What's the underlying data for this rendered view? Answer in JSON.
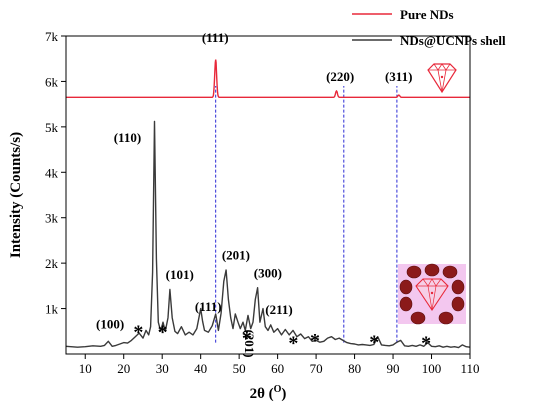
{
  "chart_data": {
    "type": "line",
    "xlabel": "2θ (",
    "xlabel_unit": "O",
    "xlabel_close": ")",
    "ylabel": "Intensity (Counts/s)",
    "xlim": [
      5,
      110
    ],
    "ylim": [
      0,
      7000
    ],
    "x_ticks": [
      10,
      20,
      30,
      40,
      50,
      60,
      70,
      80,
      90,
      100,
      110
    ],
    "y_ticks": [
      {
        "value": 1000,
        "label": "1k"
      },
      {
        "value": 2000,
        "label": "2k"
      },
      {
        "value": 3000,
        "label": "3k"
      },
      {
        "value": 4000,
        "label": "4k"
      },
      {
        "value": 5000,
        "label": "5k"
      },
      {
        "value": 6000,
        "label": "6k"
      },
      {
        "value": 7000,
        "label": "7k"
      }
    ],
    "legend_position": "top-right",
    "series": [
      {
        "name": "Pure NDs",
        "color": "#e8283a",
        "baseline": 5650,
        "peaks": [
          {
            "x": 43.9,
            "y": 6480,
            "width": 0.35
          },
          {
            "x": 75.3,
            "y": 5790,
            "width": 0.35
          },
          {
            "x": 91.5,
            "y": 5700,
            "width": 0.35
          }
        ]
      },
      {
        "name": "NDs@UCNPs shell",
        "color": "#3a3a3a",
        "points": [
          [
            5,
            170
          ],
          [
            8,
            150
          ],
          [
            10,
            160
          ],
          [
            12,
            180
          ],
          [
            14,
            170
          ],
          [
            15,
            190
          ],
          [
            16,
            280
          ],
          [
            17,
            170
          ],
          [
            18,
            190
          ],
          [
            19,
            220
          ],
          [
            20,
            250
          ],
          [
            21,
            240
          ],
          [
            22,
            300
          ],
          [
            23,
            380
          ],
          [
            24,
            460
          ],
          [
            25,
            350
          ],
          [
            25.8,
            520
          ],
          [
            26.5,
            420
          ],
          [
            27,
            600
          ],
          [
            27.5,
            1800
          ],
          [
            28,
            5120
          ],
          [
            28.5,
            2100
          ],
          [
            29,
            700
          ],
          [
            29.6,
            500
          ],
          [
            30.2,
            700
          ],
          [
            30.8,
            500
          ],
          [
            31.5,
            800
          ],
          [
            32,
            1420
          ],
          [
            32.6,
            800
          ],
          [
            33.3,
            500
          ],
          [
            34,
            450
          ],
          [
            35,
            600
          ],
          [
            36,
            420
          ],
          [
            37,
            480
          ],
          [
            38,
            420
          ],
          [
            39,
            560
          ],
          [
            40,
            1000
          ],
          [
            40.5,
            720
          ],
          [
            41,
            520
          ],
          [
            42,
            480
          ],
          [
            43,
            620
          ],
          [
            43.9,
            880
          ],
          [
            44.6,
            520
          ],
          [
            45.3,
            900
          ],
          [
            46,
            1600
          ],
          [
            46.6,
            1850
          ],
          [
            47.2,
            1200
          ],
          [
            47.8,
            800
          ],
          [
            48.4,
            560
          ],
          [
            49,
            880
          ],
          [
            49.7,
            700
          ],
          [
            50.3,
            560
          ],
          [
            51,
            700
          ],
          [
            51.6,
            520
          ],
          [
            52.3,
            850
          ],
          [
            53,
            560
          ],
          [
            53.6,
            700
          ],
          [
            54.2,
            1200
          ],
          [
            54.8,
            1460
          ],
          [
            55.4,
            700
          ],
          [
            56.2,
            1000
          ],
          [
            56.8,
            600
          ],
          [
            57.5,
            520
          ],
          [
            58.2,
            640
          ],
          [
            59,
            480
          ],
          [
            60,
            560
          ],
          [
            61,
            420
          ],
          [
            62,
            540
          ],
          [
            63,
            420
          ],
          [
            64,
            520
          ],
          [
            65,
            380
          ],
          [
            66,
            440
          ],
          [
            67,
            340
          ],
          [
            68,
            380
          ],
          [
            69,
            280
          ],
          [
            70,
            300
          ],
          [
            71,
            260
          ],
          [
            72,
            280
          ],
          [
            73,
            350
          ],
          [
            74,
            380
          ],
          [
            75,
            320
          ],
          [
            76,
            350
          ],
          [
            77,
            300
          ],
          [
            78,
            250
          ],
          [
            79,
            230
          ],
          [
            80,
            220
          ],
          [
            81,
            200
          ],
          [
            82,
            210
          ],
          [
            83,
            200
          ],
          [
            84,
            190
          ],
          [
            85,
            210
          ],
          [
            86,
            380
          ],
          [
            87,
            200
          ],
          [
            88,
            190
          ],
          [
            89,
            180
          ],
          [
            90,
            200
          ],
          [
            91,
            260
          ],
          [
            92,
            300
          ],
          [
            93,
            180
          ],
          [
            94,
            170
          ],
          [
            95,
            190
          ],
          [
            96,
            170
          ],
          [
            97,
            200
          ],
          [
            98,
            170
          ],
          [
            99,
            250
          ],
          [
            100,
            170
          ],
          [
            101,
            160
          ],
          [
            102,
            180
          ],
          [
            103,
            150
          ],
          [
            104,
            170
          ],
          [
            105,
            150
          ],
          [
            106,
            160
          ],
          [
            107,
            140
          ],
          [
            108,
            200
          ],
          [
            109,
            160
          ],
          [
            110,
            150
          ]
        ]
      }
    ],
    "reference_lines_x": [
      43.9,
      77.2,
      91.0
    ],
    "annotations": [
      {
        "text": "(111)",
        "x": 40.3,
        "y": 6870
      },
      {
        "text": "(220)",
        "x": 72.6,
        "y": 6010
      },
      {
        "text": "(311)",
        "x": 87.9,
        "y": 6010
      },
      {
        "text": "(110)",
        "x": 17.4,
        "y": 4670
      },
      {
        "text": "(101)",
        "x": 30.9,
        "y": 1650
      },
      {
        "text": "(111)",
        "x": 38.5,
        "y": 950
      },
      {
        "text": "(201)",
        "x": 45.5,
        "y": 2080
      },
      {
        "text": "(201)",
        "x": 51.5,
        "y": 540,
        "rotate": 90
      },
      {
        "text": "(300)",
        "x": 53.8,
        "y": 1680
      },
      {
        "text": "(211)",
        "x": 56.8,
        "y": 880
      },
      {
        "text": "(100)",
        "x": 12.8,
        "y": 560
      }
    ],
    "stars": [
      {
        "x": 23.8,
        "y": 520
      },
      {
        "x": 30.1,
        "y": 520
      },
      {
        "x": 52.0,
        "y": 380
      },
      {
        "x": 64.1,
        "y": 270
      },
      {
        "x": 69.7,
        "y": 330
      },
      {
        "x": 85.1,
        "y": 300
      },
      {
        "x": 98.6,
        "y": 270
      }
    ]
  }
}
